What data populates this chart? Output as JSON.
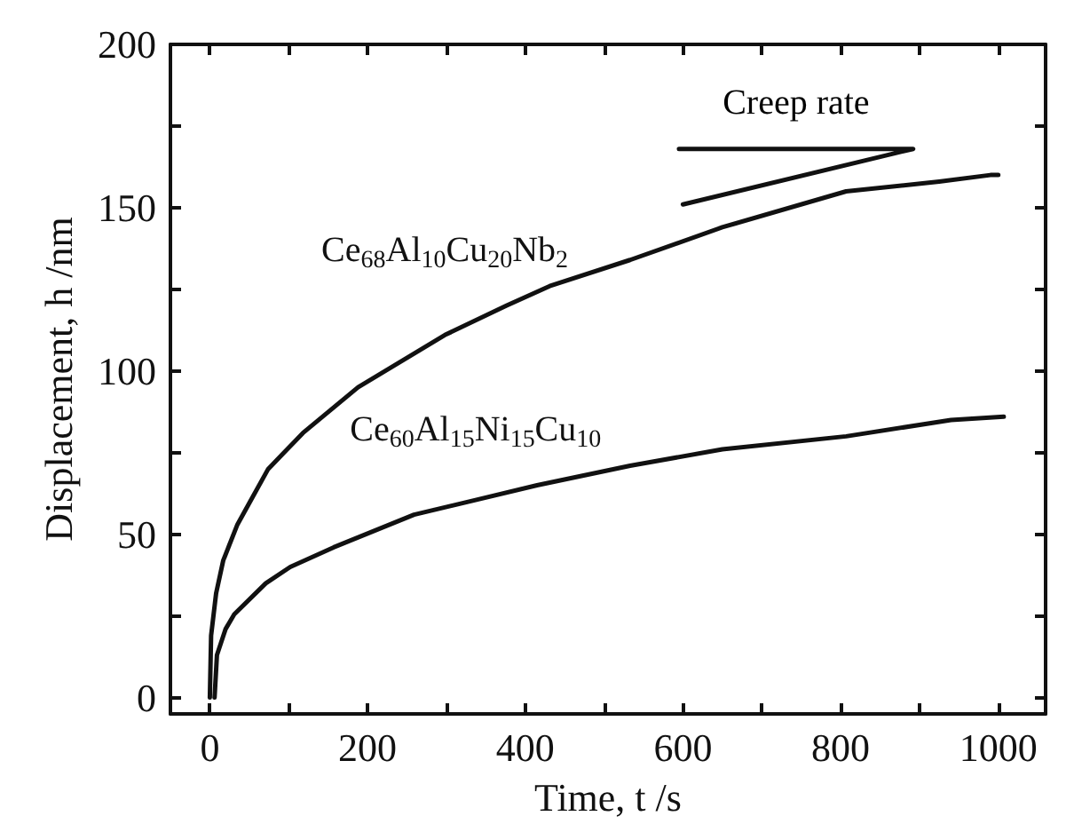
{
  "chart_data": {
    "type": "line",
    "xlabel": "Time, t /s",
    "ylabel": "Displacement, h /nm",
    "xlim": [
      -50,
      1060
    ],
    "ylim": [
      -5,
      200
    ],
    "xticks": [
      0,
      {
        "value": 100,
        "label": null
      },
      200,
      {
        "value": 300,
        "label": null
      },
      400,
      {
        "value": 500,
        "label": null
      },
      600,
      {
        "value": 700,
        "label": null
      },
      800,
      {
        "value": 900,
        "label": null
      },
      1000
    ],
    "yticks": [
      0,
      {
        "value": 25,
        "label": null
      },
      50,
      {
        "value": 75,
        "label": null
      },
      100,
      {
        "value": 125,
        "label": null
      },
      150,
      {
        "value": 175,
        "label": null
      },
      200
    ],
    "grid": false,
    "marker": "none",
    "line_style": "solid",
    "series": [
      {
        "name": "Ce$_{68}$Al$_{10}$Cu$_{20}$Nb$_{2}$",
        "color": "#111111",
        "x": [
          0,
          1.6,
          8,
          17,
          35,
          51,
          74,
          118,
          188,
          298,
          376,
          431,
          533,
          650,
          807,
          925,
          990,
          1000
        ],
        "values": [
          0,
          19,
          32,
          42,
          53,
          60,
          70,
          81,
          95,
          111,
          120,
          126,
          134,
          144,
          155,
          158,
          160,
          160
        ]
      },
      {
        "name": "Ce$_{60}$Al$_{15}$Ni$_{15}$Cu$_{10}$",
        "color": "#111111",
        "x": [
          6,
          9,
          20,
          31,
          71,
          102,
          157,
          259,
          337,
          415,
          533,
          650,
          807,
          940,
          1007
        ],
        "values": [
          0,
          13,
          21,
          25.5,
          35,
          40,
          46,
          56,
          60.5,
          65,
          71,
          76,
          80,
          85,
          86
        ]
      },
      {
        "color": "#111111",
        "x": [
          600,
          892,
          595
        ],
        "values": [
          151,
          168,
          168
        ]
      }
    ],
    "annotations": [
      "Creep rate"
    ]
  }
}
